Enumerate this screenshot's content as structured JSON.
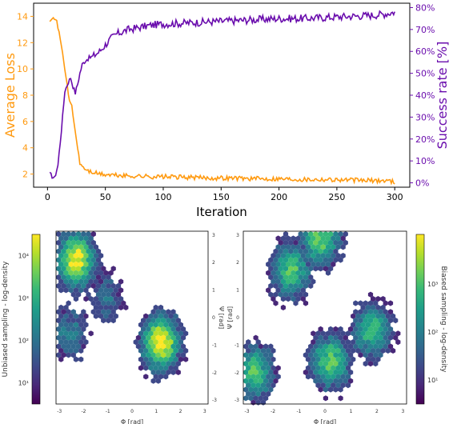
{
  "colors": {
    "loss": "#ff9a10",
    "success": "#6a0dad",
    "viridis": [
      "#440154",
      "#482878",
      "#3e4989",
      "#31688e",
      "#26828e",
      "#1f9e89",
      "#35b779",
      "#6ece58",
      "#b5de2b",
      "#fde725"
    ]
  },
  "chart_data": [
    {
      "type": "line",
      "xlabel": "Iteration",
      "xlim": [
        -12,
        313
      ],
      "x_ticks": [
        "0",
        "50",
        "100",
        "150",
        "200",
        "250",
        "300"
      ],
      "y_left": {
        "label": "Average Loss",
        "ylim": [
          1,
          15
        ],
        "ticks": [
          "2",
          "4",
          "6",
          "8",
          "10",
          "12",
          "14"
        ]
      },
      "y_right": {
        "label": "Success rate [%]",
        "ylim": [
          -2,
          82
        ],
        "ticks": [
          "0%",
          "10%",
          "20%",
          "30%",
          "40%",
          "50%",
          "60%",
          "70%",
          "80%"
        ]
      },
      "series": [
        {
          "axis": "left",
          "x": [
            2,
            5,
            8,
            11,
            14,
            17,
            19,
            21,
            23,
            26,
            28,
            32,
            36,
            40,
            45,
            50,
            60,
            70,
            80,
            90,
            100,
            120,
            140,
            160,
            180,
            200,
            220,
            240,
            260,
            280,
            295,
            300
          ],
          "values": [
            13.7,
            14.0,
            13.6,
            12.3,
            10.6,
            8.8,
            7.5,
            7.2,
            5.8,
            4.0,
            2.8,
            2.4,
            2.2,
            2.1,
            2.0,
            1.95,
            1.9,
            1.85,
            1.85,
            1.8,
            1.8,
            1.75,
            1.7,
            1.7,
            1.65,
            1.65,
            1.6,
            1.6,
            1.55,
            1.5,
            1.5,
            1.4
          ]
        },
        {
          "axis": "right",
          "x": [
            2,
            6,
            9,
            12,
            15,
            18,
            20,
            22,
            24,
            26,
            28,
            30,
            33,
            36,
            40,
            45,
            50,
            55,
            60,
            70,
            80,
            90,
            100,
            120,
            140,
            160,
            180,
            200,
            220,
            240,
            260,
            280,
            290,
            300
          ],
          "values": [
            4,
            2,
            8,
            24,
            42,
            46,
            48,
            44,
            41,
            45,
            50,
            54,
            56,
            57,
            58,
            60,
            63,
            66,
            68,
            70,
            71,
            72,
            72.5,
            73,
            73.5,
            74,
            74.5,
            75,
            75,
            75.5,
            76,
            76.5,
            77,
            78
          ]
        }
      ]
    },
    {
      "type": "heatmap",
      "xlabel": "Φ [rad]",
      "ylabel": "Ψ [rad]",
      "x_ticks": [
        "-3",
        "-2",
        "-1",
        "0",
        "1",
        "2",
        "3"
      ],
      "y_ticks": [
        "3",
        "2",
        "1",
        "0",
        "-1",
        "-2",
        "-3"
      ],
      "colorbar": {
        "label": "Unbiased sampling - log-density",
        "position": "left",
        "ticks": [
          "10¹",
          "10²",
          "10³",
          "10⁴"
        ]
      },
      "density_centers": [
        {
          "phi": -2.3,
          "psi": 2.1,
          "log_density": 3.8
        },
        {
          "phi": 1.2,
          "psi": -0.9,
          "log_density": 3.9
        },
        {
          "phi": -2.6,
          "psi": -0.6,
          "log_density": 1.8
        },
        {
          "phi": -1.0,
          "psi": 0.7,
          "log_density": 1.5
        }
      ]
    },
    {
      "type": "heatmap",
      "xlabel": "Φ [rad]",
      "ylabel": "Ψ [rad]",
      "x_ticks": [
        "-3",
        "-2",
        "-1",
        "0",
        "1",
        "2",
        "3"
      ],
      "y_ticks": [
        "3",
        "2",
        "1",
        "0",
        "-1",
        "-2",
        "-3"
      ],
      "colorbar": {
        "label": "Biased sampling - log-density",
        "position": "right",
        "ticks": [
          "10¹",
          "10²",
          "10³"
        ]
      },
      "density_centers": [
        {
          "phi": -1.3,
          "psi": 1.7,
          "log_density": 2.8
        },
        {
          "phi": 0.2,
          "psi": -1.6,
          "log_density": 2.9
        },
        {
          "phi": -0.2,
          "psi": 2.9,
          "log_density": 3.0
        },
        {
          "phi": 1.8,
          "psi": -0.5,
          "log_density": 2.6
        },
        {
          "phi": -2.7,
          "psi": -2.0,
          "log_density": 2.7
        }
      ]
    }
  ]
}
